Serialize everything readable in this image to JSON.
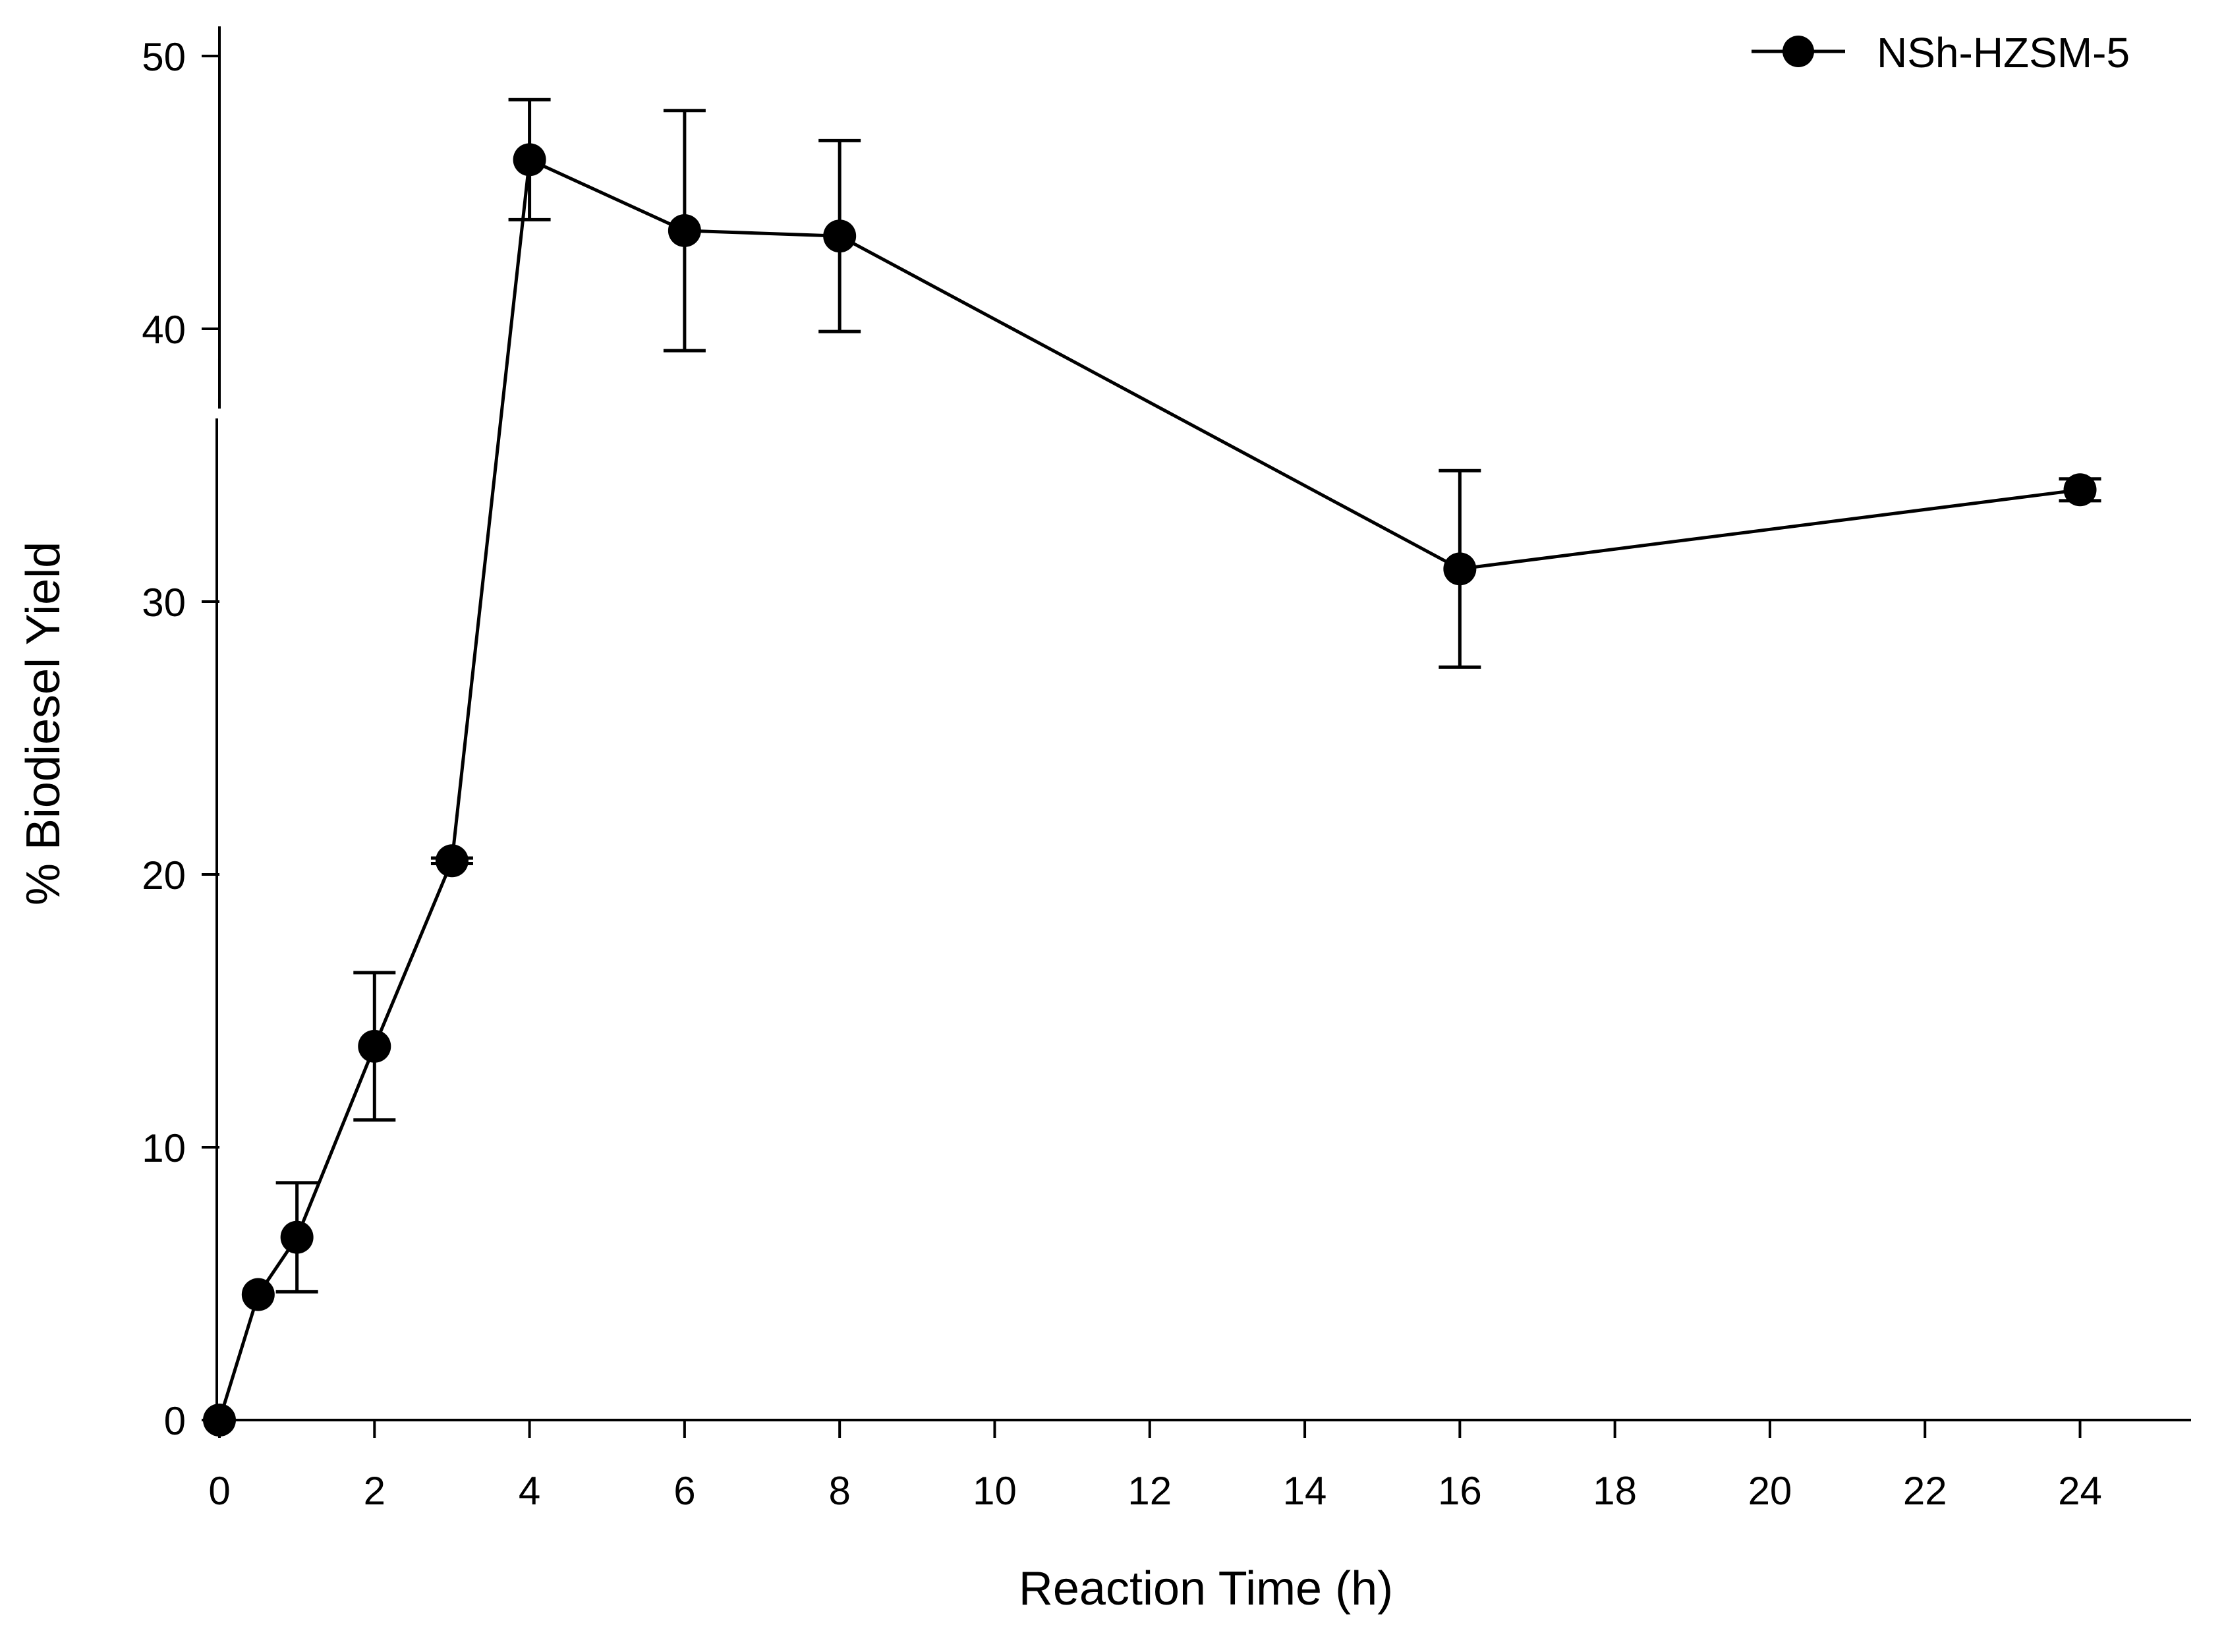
{
  "chart_data": {
    "type": "line",
    "title": "",
    "xlabel": "Reaction Time (h)",
    "ylabel": "% Biodiesel Yield",
    "xlim": [
      0,
      25.5
    ],
    "ylim": [
      0,
      50
    ],
    "x_ticks": [
      0,
      2,
      4,
      6,
      8,
      10,
      12,
      14,
      16,
      18,
      20,
      22,
      24
    ],
    "y_ticks": [
      0,
      10,
      20,
      30,
      40,
      50
    ],
    "legend_position": "top-right",
    "series": [
      {
        "name": "NSh-HZSM-5",
        "color": "#000000",
        "marker": "filled-circle",
        "x": [
          0,
          0.5,
          1,
          2,
          3,
          4,
          6,
          8,
          16,
          24
        ],
        "y": [
          0,
          4.6,
          6.7,
          13.7,
          20.5,
          46.2,
          43.6,
          43.4,
          31.2,
          34.1
        ],
        "error": [
          0,
          0,
          2.0,
          2.7,
          0.1,
          2.2,
          4.4,
          3.5,
          3.6,
          0.4
        ]
      }
    ]
  }
}
